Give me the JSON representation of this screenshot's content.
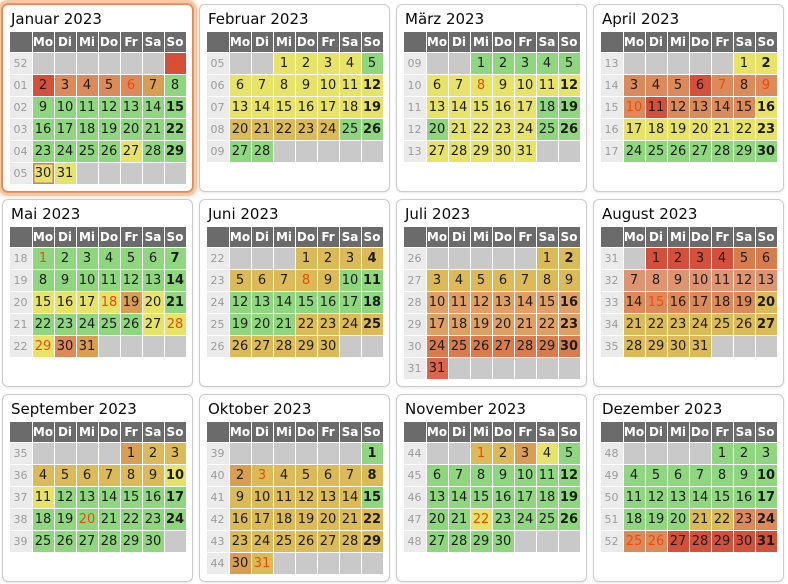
{
  "page": {
    "background": "#ffffff",
    "language": "de"
  },
  "palette": {
    "G": "#8fd77e",
    "Y": "#e7e366",
    "T": "#dcba58",
    "A": "#d99e52",
    "L": "#e0a064",
    "P": "#de9470",
    "O": "#dc8a59",
    "D": "#d97c4c",
    "S": "#dc664c",
    "R": "#d5503b",
    "E": "#c9c9c9"
  },
  "colors": {
    "header_bg": "#6b6b6b",
    "header_text": "#ffffff",
    "week_col_bg": "#ebebeb",
    "week_col_text": "#9b9b9b",
    "day_text": "#1c1c1c",
    "holiday_text": "#ee4a0e",
    "empty_cell": "#c9c9c9",
    "tile_border": "#cccccc",
    "current_tile_glow": "#f6c9a6",
    "today_border": "#d9776f"
  },
  "day_headers": [
    "Mo",
    "Di",
    "Mi",
    "Do",
    "Fr",
    "Sa",
    "So"
  ],
  "months": [
    {
      "title": "Januar 2023",
      "current": true,
      "weeks": [
        {
          "num": "52",
          "days": [
            "",
            "",
            "",
            "",
            "",
            "",
            "1:R:h"
          ]
        },
        {
          "num": "01",
          "days": [
            "2:R",
            "3:O",
            "4:O",
            "5:O",
            "6:O:h",
            "7:A",
            "8:G"
          ]
        },
        {
          "num": "02",
          "days": [
            "9:G",
            "10:G",
            "11:G",
            "12:G",
            "13:G",
            "14:G",
            "15:G:b"
          ]
        },
        {
          "num": "03",
          "days": [
            "16:G",
            "17:G",
            "18:G",
            "19:G",
            "20:G",
            "21:G",
            "22:G:b"
          ]
        },
        {
          "num": "04",
          "days": [
            "23:G",
            "24:G",
            "25:G",
            "26:G",
            "27:Y",
            "28:G",
            "29:G:b"
          ]
        },
        {
          "num": "05",
          "days": [
            "30:Y:t",
            "31:Y",
            "",
            "",
            "",
            "",
            ""
          ]
        }
      ]
    },
    {
      "title": "Februar 2023",
      "current": false,
      "weeks": [
        {
          "num": "05",
          "days": [
            "",
            "",
            "1:Y",
            "2:Y",
            "3:Y",
            "4:Y",
            "5:G"
          ]
        },
        {
          "num": "06",
          "days": [
            "6:Y",
            "7:Y",
            "8:Y",
            "9:Y",
            "10:Y",
            "11:Y",
            "12:Y:b"
          ]
        },
        {
          "num": "07",
          "days": [
            "13:Y",
            "14:Y",
            "15:Y",
            "16:Y",
            "17:Y",
            "18:Y",
            "19:Y:b"
          ]
        },
        {
          "num": "08",
          "days": [
            "20:T",
            "21:T",
            "22:T",
            "23:T",
            "24:T",
            "25:G",
            "26:G:b"
          ]
        },
        {
          "num": "09",
          "days": [
            "27:G",
            "28:G",
            "",
            "",
            "",
            "",
            ""
          ]
        }
      ]
    },
    {
      "title": "März 2023",
      "current": false,
      "weeks": [
        {
          "num": "09",
          "days": [
            "",
            "",
            "1:G",
            "2:G",
            "3:G",
            "4:G",
            "5:G"
          ]
        },
        {
          "num": "10",
          "days": [
            "6:Y",
            "7:Y",
            "8:Y:h",
            "9:Y",
            "10:Y",
            "11:Y",
            "12:Y:b"
          ]
        },
        {
          "num": "11",
          "days": [
            "13:Y",
            "14:Y",
            "15:Y",
            "16:Y",
            "17:Y",
            "18:G",
            "19:G:b"
          ]
        },
        {
          "num": "12",
          "days": [
            "20:G",
            "21:Y",
            "22:Y",
            "23:Y",
            "24:Y",
            "25:G",
            "26:G:b"
          ]
        },
        {
          "num": "13",
          "days": [
            "27:Y",
            "28:Y",
            "29:Y",
            "30:Y",
            "31:Y",
            "",
            ""
          ]
        }
      ]
    },
    {
      "title": "April 2023",
      "current": false,
      "weeks": [
        {
          "num": "13",
          "days": [
            "",
            "",
            "",
            "",
            "",
            "1:Y",
            "2:Y:b"
          ]
        },
        {
          "num": "14",
          "days": [
            "3:O",
            "4:O",
            "5:O",
            "6:R",
            "7:O:h",
            "8:O",
            "9:O:h"
          ]
        },
        {
          "num": "15",
          "days": [
            "10:O:h",
            "11:R",
            "12:O",
            "13:O",
            "14:O",
            "15:O",
            "16:Y:b"
          ]
        },
        {
          "num": "16",
          "days": [
            "17:Y",
            "18:Y",
            "19:Y",
            "20:Y",
            "21:Y",
            "22:Y",
            "23:Y:b"
          ]
        },
        {
          "num": "17",
          "days": [
            "24:G",
            "25:G",
            "26:G",
            "27:G",
            "28:G",
            "29:G",
            "30:G:b"
          ]
        }
      ]
    },
    {
      "title": "Mai 2023",
      "current": false,
      "weeks": [
        {
          "num": "18",
          "days": [
            "1:G:h",
            "2:G",
            "3:G",
            "4:G",
            "5:G",
            "6:G",
            "7:G:b"
          ]
        },
        {
          "num": "19",
          "days": [
            "8:G",
            "9:G",
            "10:G",
            "11:G",
            "12:G",
            "13:G",
            "14:G:b"
          ]
        },
        {
          "num": "20",
          "days": [
            "15:Y",
            "16:Y",
            "17:Y",
            "18:Y:h",
            "19:A",
            "20:Y",
            "21:G:b"
          ]
        },
        {
          "num": "21",
          "days": [
            "22:G",
            "23:G",
            "24:G",
            "25:G",
            "26:G",
            "27:Y",
            "28:Y:h"
          ]
        },
        {
          "num": "22",
          "days": [
            "29:Y:h",
            "30:O",
            "31:A",
            "",
            "",
            "",
            ""
          ]
        }
      ]
    },
    {
      "title": "Juni 2023",
      "current": false,
      "weeks": [
        {
          "num": "22",
          "days": [
            "",
            "",
            "",
            "1:T",
            "2:T",
            "3:T",
            "4:T:b"
          ]
        },
        {
          "num": "23",
          "days": [
            "5:T",
            "6:T",
            "7:T",
            "8:T:h",
            "9:T",
            "10:G",
            "11:G:b"
          ]
        },
        {
          "num": "24",
          "days": [
            "12:G",
            "13:G",
            "14:G",
            "15:G",
            "16:G",
            "17:G",
            "18:G:b"
          ]
        },
        {
          "num": "25",
          "days": [
            "19:G",
            "20:G",
            "21:G",
            "22:T",
            "23:T",
            "24:T",
            "25:T:b"
          ]
        },
        {
          "num": "26",
          "days": [
            "26:T",
            "27:T",
            "28:T",
            "29:T",
            "30:T",
            "",
            ""
          ]
        }
      ]
    },
    {
      "title": "Juli 2023",
      "current": false,
      "weeks": [
        {
          "num": "26",
          "days": [
            "",
            "",
            "",
            "",
            "",
            "1:T",
            "2:T:b"
          ]
        },
        {
          "num": "27",
          "days": [
            "3:T",
            "4:T",
            "5:T",
            "6:T",
            "7:T",
            "8:T",
            "9:T"
          ]
        },
        {
          "num": "28",
          "days": [
            "10:L",
            "11:L",
            "12:L",
            "13:L",
            "14:L",
            "15:L",
            "16:L:b"
          ]
        },
        {
          "num": "29",
          "days": [
            "17:L",
            "18:L",
            "19:L",
            "20:L",
            "21:L",
            "22:L",
            "23:L:b"
          ]
        },
        {
          "num": "30",
          "days": [
            "24:D",
            "25:D",
            "26:D",
            "27:D",
            "28:D",
            "29:D",
            "30:D:b"
          ]
        },
        {
          "num": "31",
          "days": [
            "31:S",
            "",
            "",
            "",
            "",
            "",
            ""
          ]
        }
      ]
    },
    {
      "title": "August 2023",
      "current": false,
      "weeks": [
        {
          "num": "31",
          "days": [
            "",
            "1:R",
            "2:R",
            "3:R",
            "4:R",
            "5:D",
            "6:D"
          ]
        },
        {
          "num": "32",
          "days": [
            "7:P",
            "8:P",
            "9:P",
            "10:P",
            "11:P",
            "12:P",
            "13:P"
          ]
        },
        {
          "num": "33",
          "days": [
            "14:O",
            "15:O:h",
            "16:O",
            "17:O",
            "18:O",
            "19:O",
            "20:T:b"
          ]
        },
        {
          "num": "34",
          "days": [
            "21:T",
            "22:T",
            "23:T",
            "24:T",
            "25:T",
            "26:T",
            "27:T:b"
          ]
        },
        {
          "num": "35",
          "days": [
            "28:T",
            "29:T",
            "30:T",
            "31:T",
            "",
            "",
            ""
          ]
        }
      ]
    },
    {
      "title": "September 2023",
      "current": false,
      "weeks": [
        {
          "num": "35",
          "days": [
            "",
            "",
            "",
            "",
            "1:A",
            "2:T",
            "3:T"
          ]
        },
        {
          "num": "36",
          "days": [
            "4:T",
            "5:T",
            "6:T",
            "7:T",
            "8:T",
            "9:T",
            "10:Y:b"
          ]
        },
        {
          "num": "37",
          "days": [
            "11:Y",
            "12:G",
            "13:G",
            "14:G",
            "15:G",
            "16:G",
            "17:G:b"
          ]
        },
        {
          "num": "38",
          "days": [
            "18:G",
            "19:G",
            "20:G:h",
            "21:G",
            "22:G",
            "23:G",
            "24:G:b"
          ]
        },
        {
          "num": "39",
          "days": [
            "25:G",
            "26:G",
            "27:G",
            "28:G",
            "29:G",
            "30:G",
            ""
          ]
        }
      ]
    },
    {
      "title": "Oktober 2023",
      "current": false,
      "weeks": [
        {
          "num": "39",
          "days": [
            "",
            "",
            "",
            "",
            "",
            "",
            "1:G:b"
          ]
        },
        {
          "num": "40",
          "days": [
            "2:A",
            "3:T:h",
            "4:T",
            "5:T",
            "6:T",
            "7:T",
            "8:T:b"
          ]
        },
        {
          "num": "41",
          "days": [
            "9:T",
            "10:T",
            "11:T",
            "12:T",
            "13:T",
            "14:T",
            "15:G:b"
          ]
        },
        {
          "num": "42",
          "days": [
            "16:T",
            "17:T",
            "18:T",
            "19:T",
            "20:T",
            "21:T",
            "22:T:b"
          ]
        },
        {
          "num": "43",
          "days": [
            "23:T",
            "24:T",
            "25:T",
            "26:T",
            "27:T",
            "28:T",
            "29:T:b"
          ]
        },
        {
          "num": "44",
          "days": [
            "30:A",
            "31:T:h",
            "",
            "",
            "",
            "",
            ""
          ]
        }
      ]
    },
    {
      "title": "November 2023",
      "current": false,
      "weeks": [
        {
          "num": "44",
          "days": [
            "",
            "",
            "1:T:h",
            "2:T",
            "3:A",
            "4:Y",
            "5:G"
          ]
        },
        {
          "num": "45",
          "days": [
            "6:G",
            "7:G",
            "8:G",
            "9:G",
            "10:G",
            "11:G",
            "12:G:b"
          ]
        },
        {
          "num": "46",
          "days": [
            "13:G",
            "14:G",
            "15:G",
            "16:G",
            "17:G",
            "18:G",
            "19:G:b"
          ]
        },
        {
          "num": "47",
          "days": [
            "20:G",
            "21:G",
            "22:Y:h",
            "23:G",
            "24:G",
            "25:G",
            "26:G:b"
          ]
        },
        {
          "num": "48",
          "days": [
            "27:G",
            "28:G",
            "29:G",
            "30:G",
            "",
            "",
            ""
          ]
        }
      ]
    },
    {
      "title": "Dezember 2023",
      "current": false,
      "weeks": [
        {
          "num": "48",
          "days": [
            "",
            "",
            "",
            "",
            "1:G",
            "2:G",
            "3:G"
          ]
        },
        {
          "num": "49",
          "days": [
            "4:G",
            "5:G",
            "6:G",
            "7:G",
            "8:G",
            "9:G",
            "10:G:b"
          ]
        },
        {
          "num": "50",
          "days": [
            "11:G",
            "12:G",
            "13:G",
            "14:G",
            "15:G",
            "16:G",
            "17:G:b"
          ]
        },
        {
          "num": "51",
          "days": [
            "18:G",
            "19:G",
            "20:G",
            "21:T",
            "22:T",
            "23:O",
            "24:O:b"
          ]
        },
        {
          "num": "52",
          "days": [
            "25:O:h",
            "26:O:h",
            "27:R",
            "28:R",
            "29:R",
            "30:R",
            "31:R:b"
          ]
        }
      ]
    }
  ]
}
